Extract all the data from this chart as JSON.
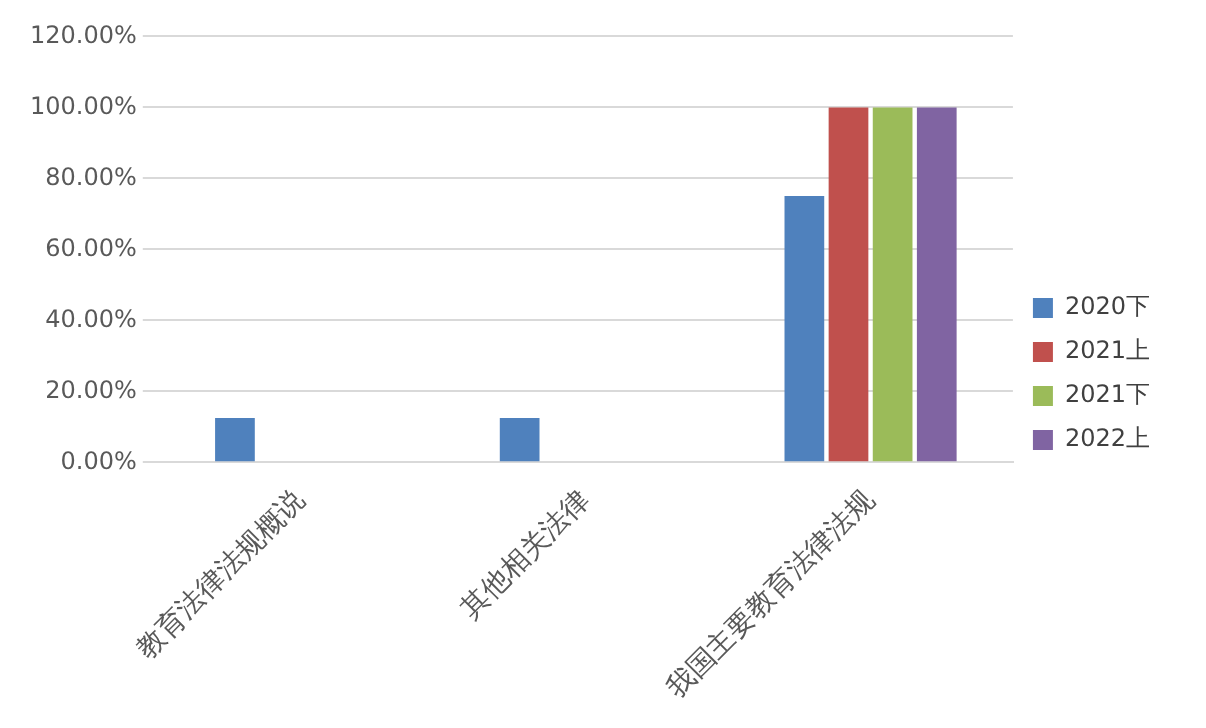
{
  "chart_data": {
    "type": "bar",
    "categories": [
      "教育法律法规概说",
      "其他相关法律",
      "我国主要教育法律法规"
    ],
    "series": [
      {
        "name": "2020下",
        "color": "#4f81bd",
        "values": [
          12.5,
          12.5,
          75
        ]
      },
      {
        "name": "2021上",
        "color": "#c0504d",
        "values": [
          0,
          0,
          100
        ]
      },
      {
        "name": "2021下",
        "color": "#9bbb59",
        "values": [
          0,
          0,
          100
        ]
      },
      {
        "name": "2022上",
        "color": "#8064a2",
        "values": [
          0,
          0,
          100
        ]
      }
    ],
    "ylim": [
      0,
      120
    ],
    "yticks": [
      {
        "value": 0,
        "label": "0.00%"
      },
      {
        "value": 20,
        "label": "20.00%"
      },
      {
        "value": 40,
        "label": "40.00%"
      },
      {
        "value": 60,
        "label": "60.00%"
      },
      {
        "value": 80,
        "label": "80.00%"
      },
      {
        "value": 100,
        "label": "100.00%"
      },
      {
        "value": 120,
        "label": "120.00%"
      }
    ],
    "grid": "y",
    "legend": "right"
  }
}
